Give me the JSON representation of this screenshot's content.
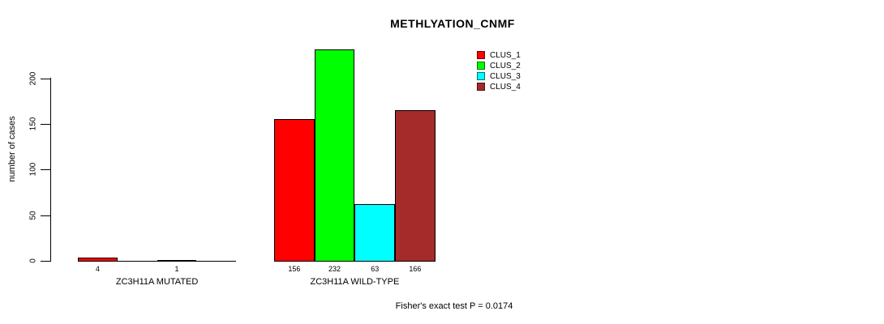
{
  "chart_data": {
    "type": "bar",
    "title": "METHLYATION_CNMF",
    "ylabel": "number of cases",
    "footnote": "Fisher's exact test P = 0.0174",
    "yticks": [
      0,
      50,
      100,
      150,
      200
    ],
    "ylim": [
      0,
      240
    ],
    "grid": false,
    "legend_position": "top-right",
    "legend": [
      {
        "label": "CLUS_1",
        "color": "#FF0000"
      },
      {
        "label": "CLUS_2",
        "color": "#00FF00"
      },
      {
        "label": "CLUS_3",
        "color": "#00FFFF"
      },
      {
        "label": "CLUS_4",
        "color": "#A52A2A"
      }
    ],
    "groups": [
      {
        "label": "ZC3H11A MUTATED",
        "values": [
          4,
          0,
          1,
          0
        ],
        "bar_labels": [
          "4",
          "",
          "1",
          ""
        ]
      },
      {
        "label": "ZC3H11A WILD-TYPE",
        "values": [
          156,
          232,
          63,
          166
        ],
        "bar_labels": [
          "156",
          "232",
          "63",
          "166"
        ]
      }
    ]
  }
}
